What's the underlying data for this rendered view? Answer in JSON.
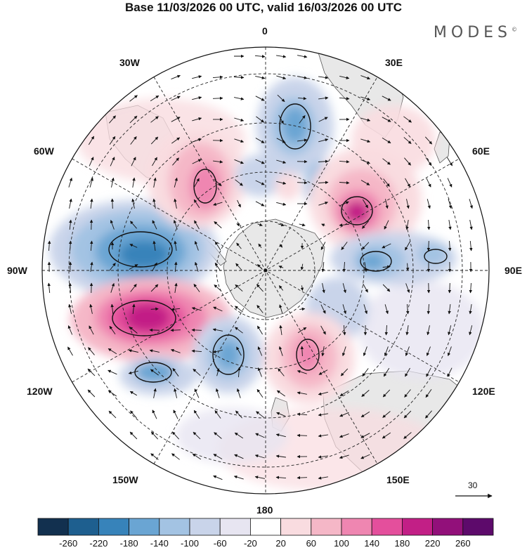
{
  "title": "Base 11/03/2026 00 UTC, valid 16/03/2026 00 UTC",
  "brand": "MODES",
  "brand_mark": "©",
  "longitude_labels": {
    "top": "0",
    "bottom": "180",
    "left": "90W",
    "right": "90E",
    "w30": "30W",
    "e30": "30E",
    "w60": "60W",
    "e60": "60E",
    "w120": "120W",
    "e120": "120E",
    "w150": "150W",
    "e150": "150E"
  },
  "reference_vector": "30",
  "colorbar": {
    "labels": [
      "-260",
      "-220",
      "-180",
      "-140",
      "-100",
      "-60",
      "-20",
      "20",
      "60",
      "100",
      "140",
      "180",
      "220",
      "260"
    ],
    "colors": [
      "#12304f",
      "#1e5f8f",
      "#3783ba",
      "#6aa5d3",
      "#a3c3e3",
      "#c9d4ea",
      "#e7e5f1",
      "#ffffff",
      "#f9dce0",
      "#f5b7c7",
      "#ef86b1",
      "#e44f9c",
      "#c21f86",
      "#92107a",
      "#5d0a6b"
    ]
  },
  "colors": {
    "land": "#e8e8e8",
    "coast": "#555555",
    "grid": "#222222"
  }
}
